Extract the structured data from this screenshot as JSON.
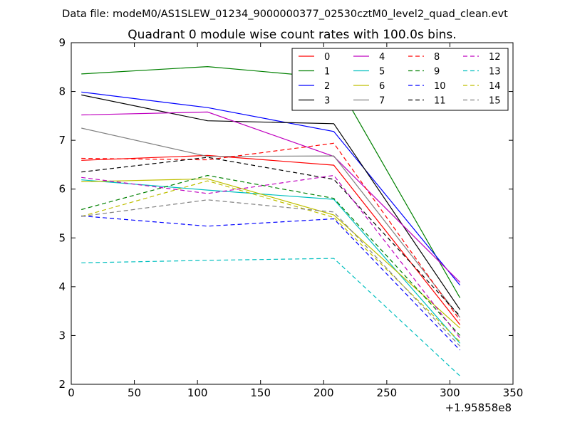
{
  "suptitle": "Data file: modeM0/AS1SLEW_01234_9000000377_02530cztM0_level2_quad_clean.evt",
  "chart_data": {
    "type": "line",
    "title": "Quadrant 0 module wise count rates with 100.0s bins.",
    "xlabel": "",
    "ylabel": "",
    "x_offset_label": "+1.95858e8",
    "xlim": [
      0,
      350
    ],
    "ylim": [
      2,
      9
    ],
    "xticks": [
      0,
      50,
      100,
      150,
      200,
      250,
      300,
      350
    ],
    "yticks": [
      2,
      3,
      4,
      5,
      6,
      7,
      8,
      9
    ],
    "grid": false,
    "legend_position": "top-right",
    "legend_columns": 4,
    "x": [
      8,
      108,
      208,
      308
    ],
    "series": [
      {
        "name": "0",
        "color": "#ff0000",
        "style": "solid",
        "values": [
          6.59,
          6.69,
          6.49,
          3.22
        ]
      },
      {
        "name": "1",
        "color": "#008000",
        "style": "solid",
        "values": [
          8.36,
          8.51,
          8.28,
          3.77
        ]
      },
      {
        "name": "2",
        "color": "#0000ff",
        "style": "solid",
        "values": [
          7.99,
          7.67,
          7.18,
          4.03
        ]
      },
      {
        "name": "3",
        "color": "#000000",
        "style": "solid",
        "values": [
          7.93,
          7.4,
          7.34,
          3.53
        ]
      },
      {
        "name": "4",
        "color": "#bf00bf",
        "style": "solid",
        "values": [
          7.52,
          7.58,
          6.67,
          4.09
        ]
      },
      {
        "name": "5",
        "color": "#00bfbf",
        "style": "solid",
        "values": [
          6.19,
          5.98,
          5.79,
          2.84
        ]
      },
      {
        "name": "6",
        "color": "#bfbf00",
        "style": "solid",
        "values": [
          6.15,
          6.21,
          5.47,
          3.15
        ]
      },
      {
        "name": "7",
        "color": "#808080",
        "style": "solid",
        "values": [
          7.25,
          6.67,
          6.68,
          3.37
        ]
      },
      {
        "name": "8",
        "color": "#ff0000",
        "style": "dashed",
        "values": [
          6.63,
          6.6,
          6.94,
          3.31
        ]
      },
      {
        "name": "9",
        "color": "#008000",
        "style": "dashed",
        "values": [
          5.58,
          6.28,
          5.81,
          3.0
        ]
      },
      {
        "name": "10",
        "color": "#0000ff",
        "style": "dashed",
        "values": [
          5.45,
          5.24,
          5.39,
          2.7
        ]
      },
      {
        "name": "11",
        "color": "#000000",
        "style": "dashed",
        "values": [
          6.35,
          6.65,
          6.2,
          3.4
        ]
      },
      {
        "name": "12",
        "color": "#bf00bf",
        "style": "dashed",
        "values": [
          6.24,
          5.91,
          6.28,
          2.95
        ]
      },
      {
        "name": "13",
        "color": "#00bfbf",
        "style": "dashed",
        "values": [
          4.49,
          4.54,
          4.58,
          2.17
        ]
      },
      {
        "name": "14",
        "color": "#bfbf00",
        "style": "dashed",
        "values": [
          5.44,
          6.17,
          5.42,
          2.87
        ]
      },
      {
        "name": "15",
        "color": "#808080",
        "style": "dashed",
        "values": [
          5.44,
          5.78,
          5.53,
          2.78
        ]
      }
    ]
  }
}
